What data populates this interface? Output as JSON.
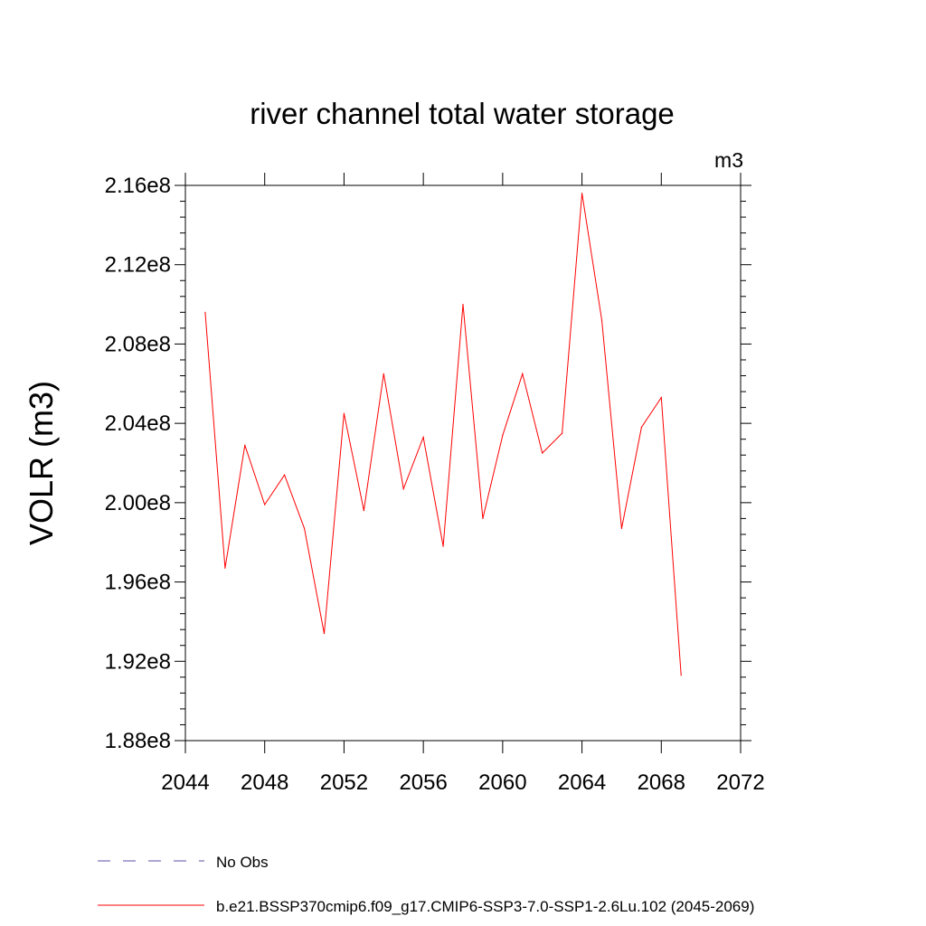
{
  "chart_data": {
    "type": "line",
    "title": "river channel total water storage",
    "units_label": "m3",
    "ylabel": "VOLR  (m3)",
    "xlabel": "",
    "xlim": [
      2044,
      2072
    ],
    "ylim": [
      188000000.0,
      216000000.0
    ],
    "x_ticks": [
      "2044",
      "2048",
      "2052",
      "2056",
      "2060",
      "2064",
      "2068",
      "2072"
    ],
    "y_ticks": [
      "1.88e8",
      "1.92e8",
      "1.96e8",
      "2.00e8",
      "2.04e8",
      "2.08e8",
      "2.12e8",
      "2.16e8"
    ],
    "grid": false,
    "series": [
      {
        "name": "b.e21.BSSP370cmip6.f09_g17.CMIP6-SSP3-7.0-SSP1-2.6Lu.102 (2045-2069)",
        "color": "#ff0000",
        "style": "solid",
        "x": [
          2045,
          2046,
          2047,
          2048,
          2049,
          2050,
          2051,
          2052,
          2053,
          2054,
          2055,
          2056,
          2057,
          2058,
          2059,
          2060,
          2061,
          2062,
          2063,
          2064,
          2065,
          2066,
          2067,
          2068,
          2069
        ],
        "y": [
          209600000.0,
          196700000.0,
          202900000.0,
          199900000.0,
          201400000.0,
          198700000.0,
          193400000.0,
          204500000.0,
          199600000.0,
          206500000.0,
          200700000.0,
          203300000.0,
          197800000.0,
          210000000.0,
          199200000.0,
          203400000.0,
          206500000.0,
          202500000.0,
          203500000.0,
          215600000.0,
          209200000.0,
          198700000.0,
          203800000.0,
          205300000.0,
          191300000.0
        ]
      }
    ],
    "legend": [
      {
        "label": "No Obs",
        "color": "#5a4ea6",
        "style": "dashed"
      },
      {
        "label": "b.e21.BSSP370cmip6.f09_g17.CMIP6-SSP3-7.0-SSP1-2.6Lu.102 (2045-2069)",
        "color": "#ff0000",
        "style": "solid"
      }
    ],
    "legend_position": "bottom-left"
  }
}
